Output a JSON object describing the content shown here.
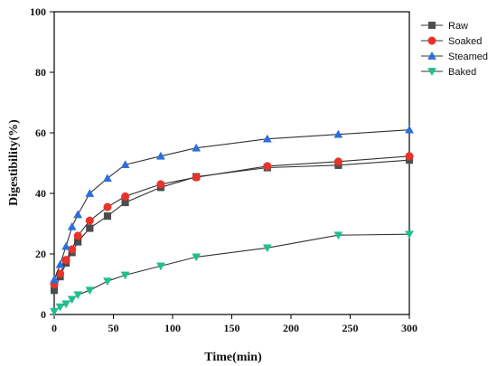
{
  "chart_data": {
    "type": "line",
    "title": "",
    "xlabel": "Time(min)",
    "ylabel": "Digestibility(%)",
    "xlim": [
      0,
      300
    ],
    "ylim": [
      0,
      100
    ],
    "xticks": [
      0,
      50,
      100,
      150,
      200,
      250,
      300
    ],
    "yticks": [
      0,
      20,
      40,
      60,
      80,
      100
    ],
    "grid": false,
    "legend_position": "top-right",
    "series": [
      {
        "name": "Raw",
        "color": "#4d4d4d",
        "marker": "square",
        "x": [
          0,
          5,
          10,
          15,
          20,
          30,
          45,
          60,
          90,
          120,
          180,
          240,
          300
        ],
        "y": [
          8,
          12.5,
          17,
          20.5,
          24,
          28.5,
          32.5,
          37,
          42,
          45.5,
          48.5,
          49.3,
          51
        ]
      },
      {
        "name": "Soaked",
        "color": "#e8332a",
        "marker": "circle",
        "x": [
          0,
          5,
          10,
          15,
          20,
          30,
          45,
          60,
          90,
          120,
          180,
          240,
          300
        ],
        "y": [
          10,
          13.5,
          18,
          21.5,
          26,
          31,
          35.5,
          39,
          43,
          45.3,
          49,
          50.5,
          52.3
        ]
      },
      {
        "name": "Steamed",
        "color": "#2a6fdb",
        "marker": "triangle-up",
        "x": [
          0,
          5,
          10,
          15,
          20,
          30,
          45,
          60,
          90,
          120,
          180,
          240,
          300
        ],
        "y": [
          11.5,
          16.5,
          22.5,
          29,
          33,
          40,
          45,
          49.5,
          52.3,
          55,
          58,
          59.5,
          61
        ]
      },
      {
        "name": "Baked",
        "color": "#1fbf8f",
        "marker": "triangle-down",
        "x": [
          0,
          5,
          10,
          15,
          20,
          30,
          45,
          60,
          90,
          120,
          180,
          240,
          300
        ],
        "y": [
          1,
          2.5,
          3.5,
          5,
          6.5,
          8,
          11,
          13,
          16,
          19,
          22,
          26.2,
          26.5
        ]
      }
    ]
  }
}
